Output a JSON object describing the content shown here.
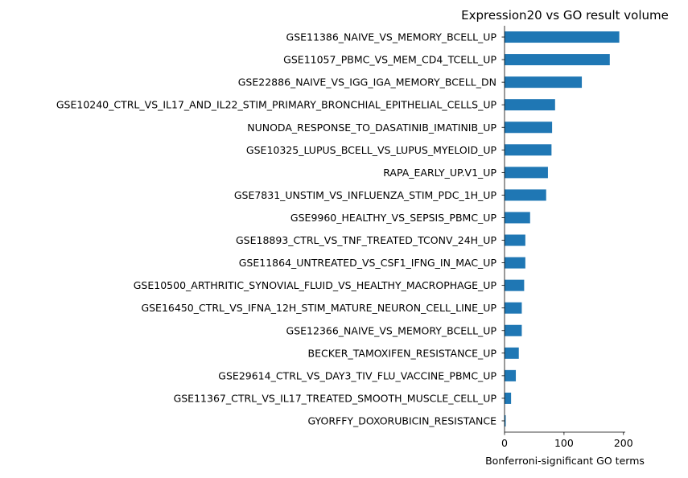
{
  "chart_data": {
    "type": "bar",
    "orientation": "horizontal",
    "title": "Expression20 vs GO result volume",
    "xlabel": "Bonferroni-significant GO terms",
    "ylabel": "",
    "xlim": [
      0,
      203
    ],
    "xticks": [
      0,
      100,
      200
    ],
    "xtick_labels": [
      "0",
      "100",
      "200"
    ],
    "grid": false,
    "bar_color": "#1f77b4",
    "categories": [
      "GSE11386_NAIVE_VS_MEMORY_BCELL_UP",
      "GSE11057_PBMC_VS_MEM_CD4_TCELL_UP",
      "GSE22886_NAIVE_VS_IGG_IGA_MEMORY_BCELL_DN",
      "GSE10240_CTRL_VS_IL17_AND_IL22_STIM_PRIMARY_BRONCHIAL_EPITHELIAL_CELLS_UP",
      "NUNODA_RESPONSE_TO_DASATINIB_IMATINIB_UP",
      "GSE10325_LUPUS_BCELL_VS_LUPUS_MYELOID_UP",
      "RAPA_EARLY_UP.V1_UP",
      "GSE7831_UNSTIM_VS_INFLUENZA_STIM_PDC_1H_UP",
      "GSE9960_HEALTHY_VS_SEPSIS_PBMC_UP",
      "GSE18893_CTRL_VS_TNF_TREATED_TCONV_24H_UP",
      "GSE11864_UNTREATED_VS_CSF1_IFNG_IN_MAC_UP",
      "GSE10500_ARTHRITIC_SYNOVIAL_FLUID_VS_HEALTHY_MACROPHAGE_UP",
      "GSE16450_CTRL_VS_IFNA_12H_STIM_MATURE_NEURON_CELL_LINE_UP",
      "GSE12366_NAIVE_VS_MEMORY_BCELL_UP",
      "BECKER_TAMOXIFEN_RESISTANCE_UP",
      "GSE29614_CTRL_VS_DAY3_TIV_FLU_VACCINE_PBMC_UP",
      "GSE11367_CTRL_VS_IL17_TREATED_SMOOTH_MUSCLE_CELL_UP",
      "GYORFFY_DOXORUBICIN_RESISTANCE"
    ],
    "values": [
      193,
      177,
      130,
      85,
      80,
      79,
      73,
      70,
      43,
      35,
      35,
      33,
      29,
      29,
      24,
      19,
      11,
      2
    ]
  }
}
